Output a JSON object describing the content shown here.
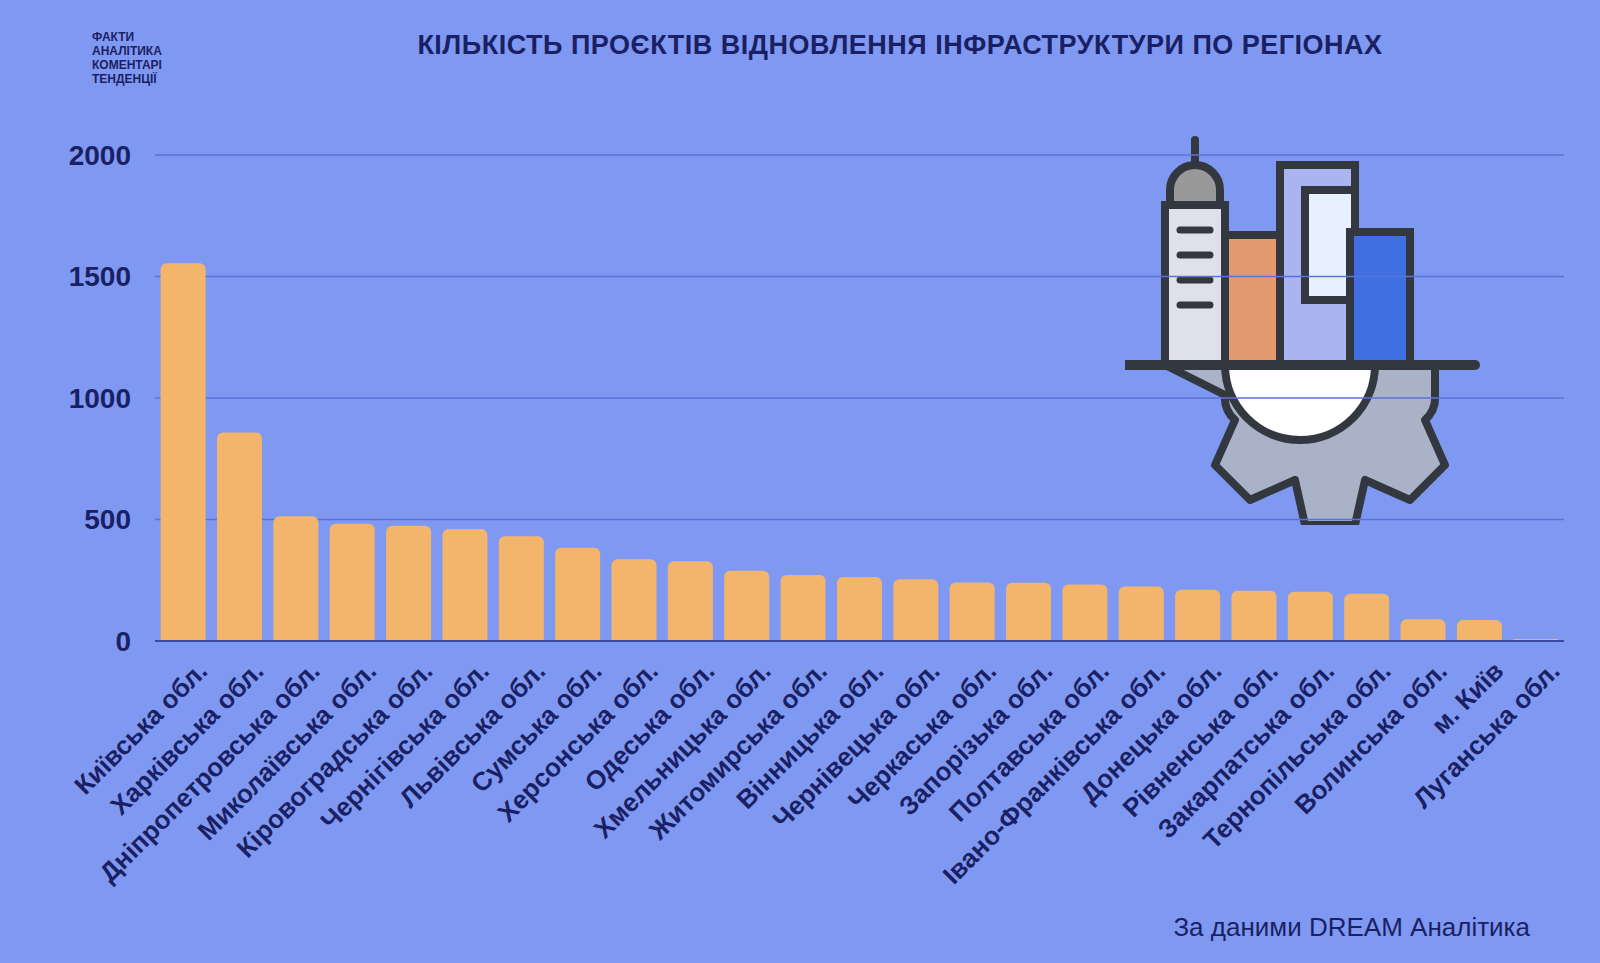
{
  "chart_data": {
    "type": "bar",
    "title": "КІЛЬКІСТЬ ПРОЄКТІВ ВІДНОВЛЕННЯ ІНФРАСТРУКТУРИ ПО РЕГІОНАХ",
    "categories": [
      "Київська обл.",
      "Харківська обл.",
      "Дніпропетровська обл.",
      "Миколаївська обл.",
      "Кіровоградська обл.",
      "Чернігівська обл.",
      "Львівська обл.",
      "Сумська обл.",
      "Херсонська обл.",
      "Одеська обл.",
      "Хмельницька обл.",
      "Житомирська обл.",
      "Вінницька обл.",
      "Чернівецька обл.",
      "Черкаська обл.",
      "Запорізька обл.",
      "Полтавська обл.",
      "Івано-Франківська обл.",
      "Донецька обл.",
      "Рівненська обл.",
      "Закарпатська обл.",
      "Тернопільська обл.",
      "Волинська обл.",
      "м. Київ",
      "Луганська обл."
    ],
    "values": [
      1555,
      858,
      513,
      483,
      474,
      461,
      431,
      384,
      336,
      328,
      289,
      272,
      263,
      254,
      241,
      240,
      233,
      224,
      211,
      207,
      203,
      194,
      90,
      86,
      8
    ],
    "color": "#f2b56b",
    "ylim": [
      0,
      2000
    ],
    "yticks": [
      0,
      500,
      1000,
      1500,
      2000
    ],
    "grid": true,
    "annotations": [
      "За даними DREAM Аналітика",
      "ФАКТИ",
      "АНАЛІТИКА",
      "КОМЕНТАРІ",
      "ТЕНДЕНЦІЇ"
    ]
  }
}
